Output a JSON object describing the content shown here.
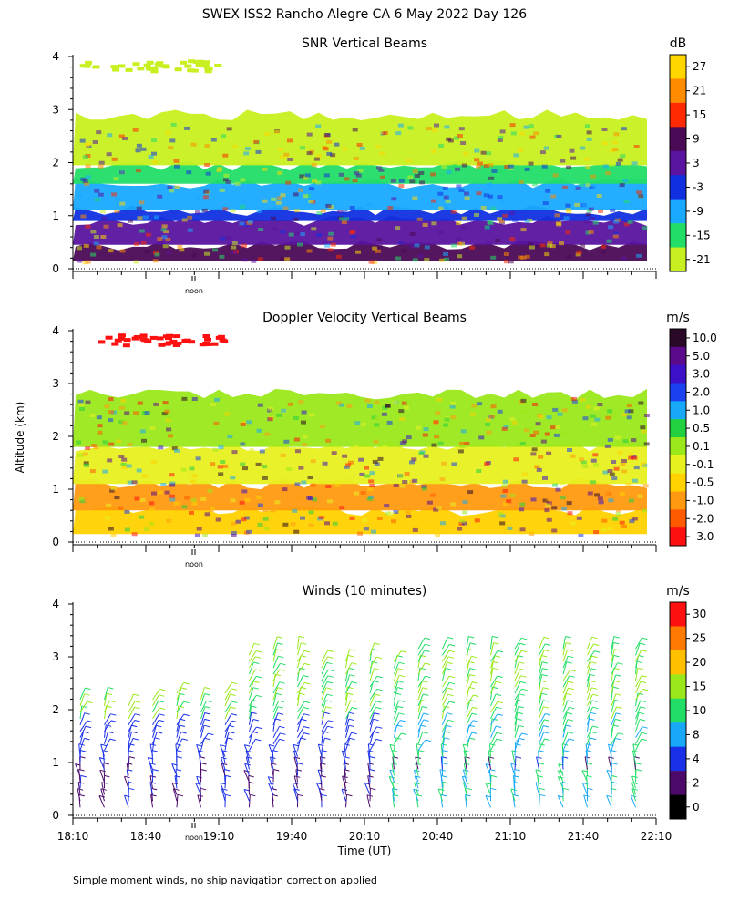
{
  "figure_title": "SWEX ISS2 Rancho Alegre CA    6 May 2022 Day 126",
  "ylabel": "Altitude (km)",
  "xlabel": "Time (UT)",
  "noon_label": "noon",
  "footnote": "Simple moment winds, no ship navigation correction applied",
  "chart_data": [
    {
      "type": "heatmap",
      "title": "SNR Vertical Beams",
      "units": "dB",
      "ylim": [
        0,
        4
      ],
      "yticks": [
        "0",
        "1",
        "2",
        "3",
        "4"
      ],
      "colorbar": {
        "labels": [
          "27",
          "21",
          "15",
          "9",
          "3",
          "-3",
          "-9",
          "-15",
          "-21"
        ],
        "colors": [
          "#ffd700",
          "#ff8c00",
          "#ff2a00",
          "#4b0a55",
          "#5a14a0",
          "#1030e0",
          "#19aaff",
          "#22dd66",
          "#c8f020"
        ]
      },
      "layers": [
        {
          "bottom": 0.15,
          "top": 0.45,
          "value": "9",
          "color": "#4b0a55"
        },
        {
          "bottom": 0.45,
          "top": 0.9,
          "value": "3",
          "color": "#5a14a0"
        },
        {
          "bottom": 0.9,
          "top": 1.1,
          "value": "-3",
          "color": "#1030e0"
        },
        {
          "bottom": 1.1,
          "top": 1.6,
          "value": "-9",
          "color": "#19aaff"
        },
        {
          "bottom": 1.6,
          "top": 1.95,
          "value": "-15",
          "color": "#22dd66"
        },
        {
          "bottom": 1.95,
          "top": 2.9,
          "value": "-21",
          "color": "#c8f020"
        }
      ]
    },
    {
      "type": "heatmap",
      "title": "Doppler Velocity Vertical Beams",
      "units": "m/s",
      "ylim": [
        0,
        4
      ],
      "yticks": [
        "0",
        "1",
        "2",
        "3",
        "4"
      ],
      "colorbar": {
        "labels": [
          "10.0",
          "5.0",
          "3.0",
          "2.0",
          "1.0",
          "0.5",
          "0.1",
          "-0.1",
          "-0.5",
          "-1.0",
          "-2.0",
          "-3.0"
        ],
        "colors": [
          "#2a0828",
          "#5a0a8a",
          "#3c10c8",
          "#1a40f0",
          "#18a8f8",
          "#22d040",
          "#9ae81a",
          "#e8f020",
          "#ffd200",
          "#ff9a10",
          "#ff5a00",
          "#ff1010"
        ]
      },
      "layers": [
        {
          "bottom": 0.15,
          "top": 0.6,
          "value": "-0.5",
          "color": "#ffd200"
        },
        {
          "bottom": 0.6,
          "top": 1.1,
          "value": "-1.0",
          "color": "#ff9a10"
        },
        {
          "bottom": 1.1,
          "top": 1.8,
          "value": "-0.1",
          "color": "#e8f020"
        },
        {
          "bottom": 1.8,
          "top": 2.8,
          "value": "0.1",
          "color": "#9ae81a"
        }
      ]
    },
    {
      "type": "wind-barbs",
      "title": "Winds (10 minutes)",
      "units": "m/s",
      "ylim": [
        0,
        4
      ],
      "yticks": [
        "0",
        "1",
        "2",
        "3",
        "4"
      ],
      "xticks": [
        "18:10",
        "18:40",
        "19:10",
        "19:40",
        "20:10",
        "20:40",
        "21:10",
        "21:40",
        "22:10"
      ],
      "time_range": [
        "18:10",
        "22:10"
      ],
      "colorbar": {
        "labels": [
          "30",
          "25",
          "20",
          "15",
          "10",
          "8",
          "4",
          "2",
          "0"
        ],
        "colors": [
          "#ff1010",
          "#ff7a00",
          "#ffc000",
          "#9ae81a",
          "#22dd66",
          "#18a8f8",
          "#1a30e8",
          "#4b0a6a",
          "#000000"
        ]
      }
    }
  ]
}
